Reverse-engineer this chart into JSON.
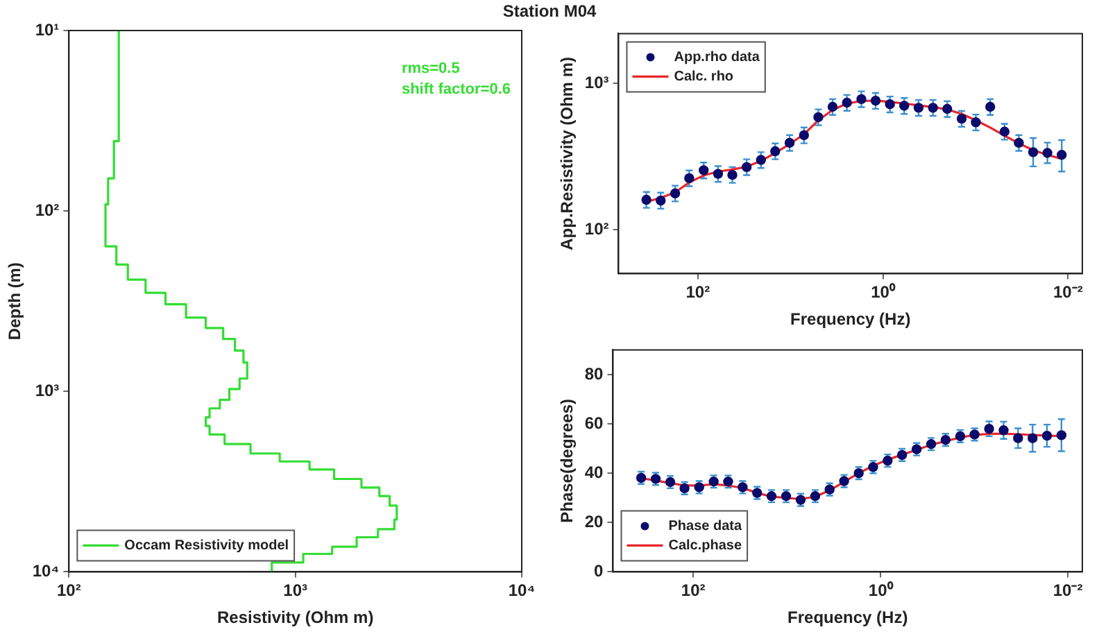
{
  "chart_data": [
    {
      "type": "line",
      "title": "Station M04",
      "xlabel": "Resistivity (Ohm m)",
      "ylabel": "Depth (m)",
      "log": "xy",
      "xlim": [
        100,
        10000
      ],
      "ylim": [
        10000,
        10
      ],
      "xticks": [
        {
          "value": 100,
          "label": "10²"
        },
        {
          "value": 1000,
          "label": "10³"
        },
        {
          "value": 10000,
          "label": "10⁴"
        }
      ],
      "yticks": [
        {
          "value": 10,
          "label": "10¹"
        },
        {
          "value": 100,
          "label": "10²"
        },
        {
          "value": 1000,
          "label": "10³"
        },
        {
          "value": 10000,
          "label": "10⁴"
        }
      ],
      "legend": "bottom left",
      "annotations": [
        "rms=0.5",
        "shift factor=0.6"
      ],
      "series": [
        {
          "name": "Occam Resistivity model",
          "color": "#33dd33",
          "x": [
            166,
            166,
            158,
            158,
            149,
            149,
            145,
            145,
            162,
            162,
            182,
            182,
            218,
            218,
            267,
            267,
            329,
            329,
            402,
            402,
            480,
            480,
            541,
            541,
            590,
            590,
            613,
            613,
            567,
            567,
            511,
            511,
            464,
            464,
            418,
            418,
            402,
            402,
            418,
            418,
            487,
            487,
            634,
            634,
            853,
            853,
            1155,
            1155,
            1483,
            1483,
            1959,
            1959,
            2350,
            2350,
            2610,
            2610,
            2805,
            2805,
            2738,
            2738,
            2317,
            2317,
            1866,
            1866,
            1454,
            1454,
            1084,
            1084,
            787,
            787
          ],
          "values": [
            10,
            41,
            41,
            66,
            66,
            92,
            92,
            157,
            157,
            198,
            198,
            240,
            240,
            284,
            284,
            329,
            329,
            390,
            390,
            445,
            445,
            512,
            512,
            594,
            594,
            692,
            692,
            849,
            849,
            970,
            970,
            1114,
            1114,
            1242,
            1242,
            1393,
            1393,
            1555,
            1555,
            1734,
            1734,
            1956,
            1956,
            2208,
            2208,
            2445,
            2445,
            2710,
            2710,
            3057,
            3057,
            3410,
            3410,
            3803,
            3803,
            4295,
            4295,
            5136,
            5136,
            5803,
            5803,
            6430,
            6430,
            7259,
            7259,
            7950,
            7950,
            8870,
            8870,
            10000
          ]
        }
      ]
    },
    {
      "type": "scatter",
      "xlabel": "Frequency (Hz)",
      "ylabel": "App.Resistivity (Ohm m)",
      "log": "xy",
      "xlim": [
        720,
        0.007
      ],
      "ylim": [
        50,
        2200
      ],
      "xticks": [
        {
          "value": 100,
          "label": "10²"
        },
        {
          "value": 1,
          "label": "10⁰"
        },
        {
          "value": 0.01,
          "label": "10⁻²"
        }
      ],
      "yticks": [
        {
          "value": 100,
          "label": "10²"
        },
        {
          "value": 1000,
          "label": "10³"
        }
      ],
      "legend": "top left",
      "x": [
        360,
        252,
        176,
        124,
        86.5,
        60.5,
        42.4,
        29.7,
        20.8,
        14.6,
        10.2,
        7.13,
        4.99,
        3.5,
        2.45,
        1.71,
        1.2,
        0.84,
        0.589,
        0.412,
        0.288,
        0.202,
        0.141,
        0.0991,
        0.0693,
        0.0485,
        0.034,
        0.0238,
        0.0167,
        0.0117
      ],
      "series": [
        {
          "name": "App.rho data",
          "color": "#0b0b6b",
          "marker": "circle",
          "values": [
            160,
            158,
            177,
            225,
            255,
            241,
            237,
            268,
            300,
            344,
            393,
            443,
            589,
            693,
            740,
            783,
            764,
            722,
            705,
            683,
            683,
            671,
            575,
            543,
            693,
            469,
            393,
            339,
            335,
            325
          ],
          "errors": [
            [
              141,
              181
            ],
            [
              139,
              179
            ],
            [
              156,
              200
            ],
            [
              198,
              254
            ],
            [
              224,
              288
            ],
            [
              212,
              272
            ],
            [
              209,
              268
            ],
            [
              236,
              303
            ],
            [
              264,
              339
            ],
            [
              303,
              389
            ],
            [
              346,
              444
            ],
            [
              390,
              501
            ],
            [
              518,
              666
            ],
            [
              610,
              783
            ],
            [
              651,
              836
            ],
            [
              689,
              885
            ],
            [
              672,
              863
            ],
            [
              635,
              816
            ],
            [
              620,
              797
            ],
            [
              601,
              772
            ],
            [
              601,
              772
            ],
            [
              590,
              758
            ],
            [
              506,
              650
            ],
            [
              478,
              614
            ],
            [
              610,
              783
            ],
            [
              413,
              530
            ],
            [
              346,
              444
            ],
            [
              271,
              424
            ],
            [
              285,
              394
            ],
            [
              250,
              410
            ]
          ]
        },
        {
          "name": "Calc. rho",
          "color": "#e8262a",
          "type": "line",
          "values": [
            155,
            165,
            180,
            210,
            235,
            250,
            258,
            270,
            295,
            335,
            385,
            450,
            560,
            660,
            730,
            760,
            765,
            750,
            730,
            710,
            690,
            665,
            620,
            560,
            500,
            440,
            390,
            350,
            325,
            305
          ]
        }
      ]
    },
    {
      "type": "scatter",
      "xlabel": "Frequency (Hz)",
      "ylabel": "Phase(degrees)",
      "log": "x",
      "xlim": [
        720,
        0.007
      ],
      "ylim": [
        0,
        90
      ],
      "xticks": [
        {
          "value": 100,
          "label": "10²"
        },
        {
          "value": 1,
          "label": "10⁰"
        },
        {
          "value": 0.01,
          "label": "10⁻²"
        }
      ],
      "yticks": [
        0,
        20,
        40,
        60,
        80
      ],
      "legend": "bottom left",
      "x": [
        360,
        252,
        176,
        124,
        86.5,
        60.5,
        42.4,
        29.7,
        20.8,
        14.6,
        10.2,
        7.13,
        4.99,
        3.5,
        2.45,
        1.71,
        1.2,
        0.84,
        0.589,
        0.412,
        0.288,
        0.202,
        0.141,
        0.0991,
        0.0693,
        0.0485,
        0.034,
        0.0238,
        0.0167,
        0.0117
      ],
      "series": [
        {
          "name": "Phase data",
          "color": "#0b0b6b",
          "marker": "circle",
          "values": [
            38.1,
            37.7,
            36.4,
            33.9,
            34.3,
            36.6,
            36.6,
            34.3,
            32,
            30.7,
            30.7,
            29.2,
            30.7,
            33.4,
            36.8,
            40,
            42.5,
            45.1,
            47.4,
            49.7,
            51.8,
            53.5,
            55,
            55.7,
            58,
            57.4,
            54.2,
            54.2,
            55.2,
            55.4
          ],
          "errors": [
            2.5,
            2.5,
            2.5,
            2.5,
            2.5,
            2.5,
            2.5,
            2.5,
            2.5,
            2.5,
            2.5,
            2.5,
            2.5,
            2.5,
            2.5,
            2.5,
            2.5,
            2.5,
            2.5,
            2.5,
            2.5,
            2.5,
            2.5,
            2.5,
            3,
            3.5,
            4,
            5.5,
            4.5,
            6.5
          ]
        },
        {
          "name": "Calc.phase",
          "color": "#e8262a",
          "type": "line",
          "values": [
            38,
            37,
            36,
            35,
            35,
            35.5,
            35,
            34,
            32,
            30.5,
            30,
            29.5,
            30.5,
            33,
            36.5,
            40,
            43,
            45.5,
            47.5,
            49.5,
            51.5,
            53,
            54.5,
            55.5,
            56,
            56,
            55.8,
            55.5,
            55.3,
            55
          ]
        }
      ]
    }
  ]
}
